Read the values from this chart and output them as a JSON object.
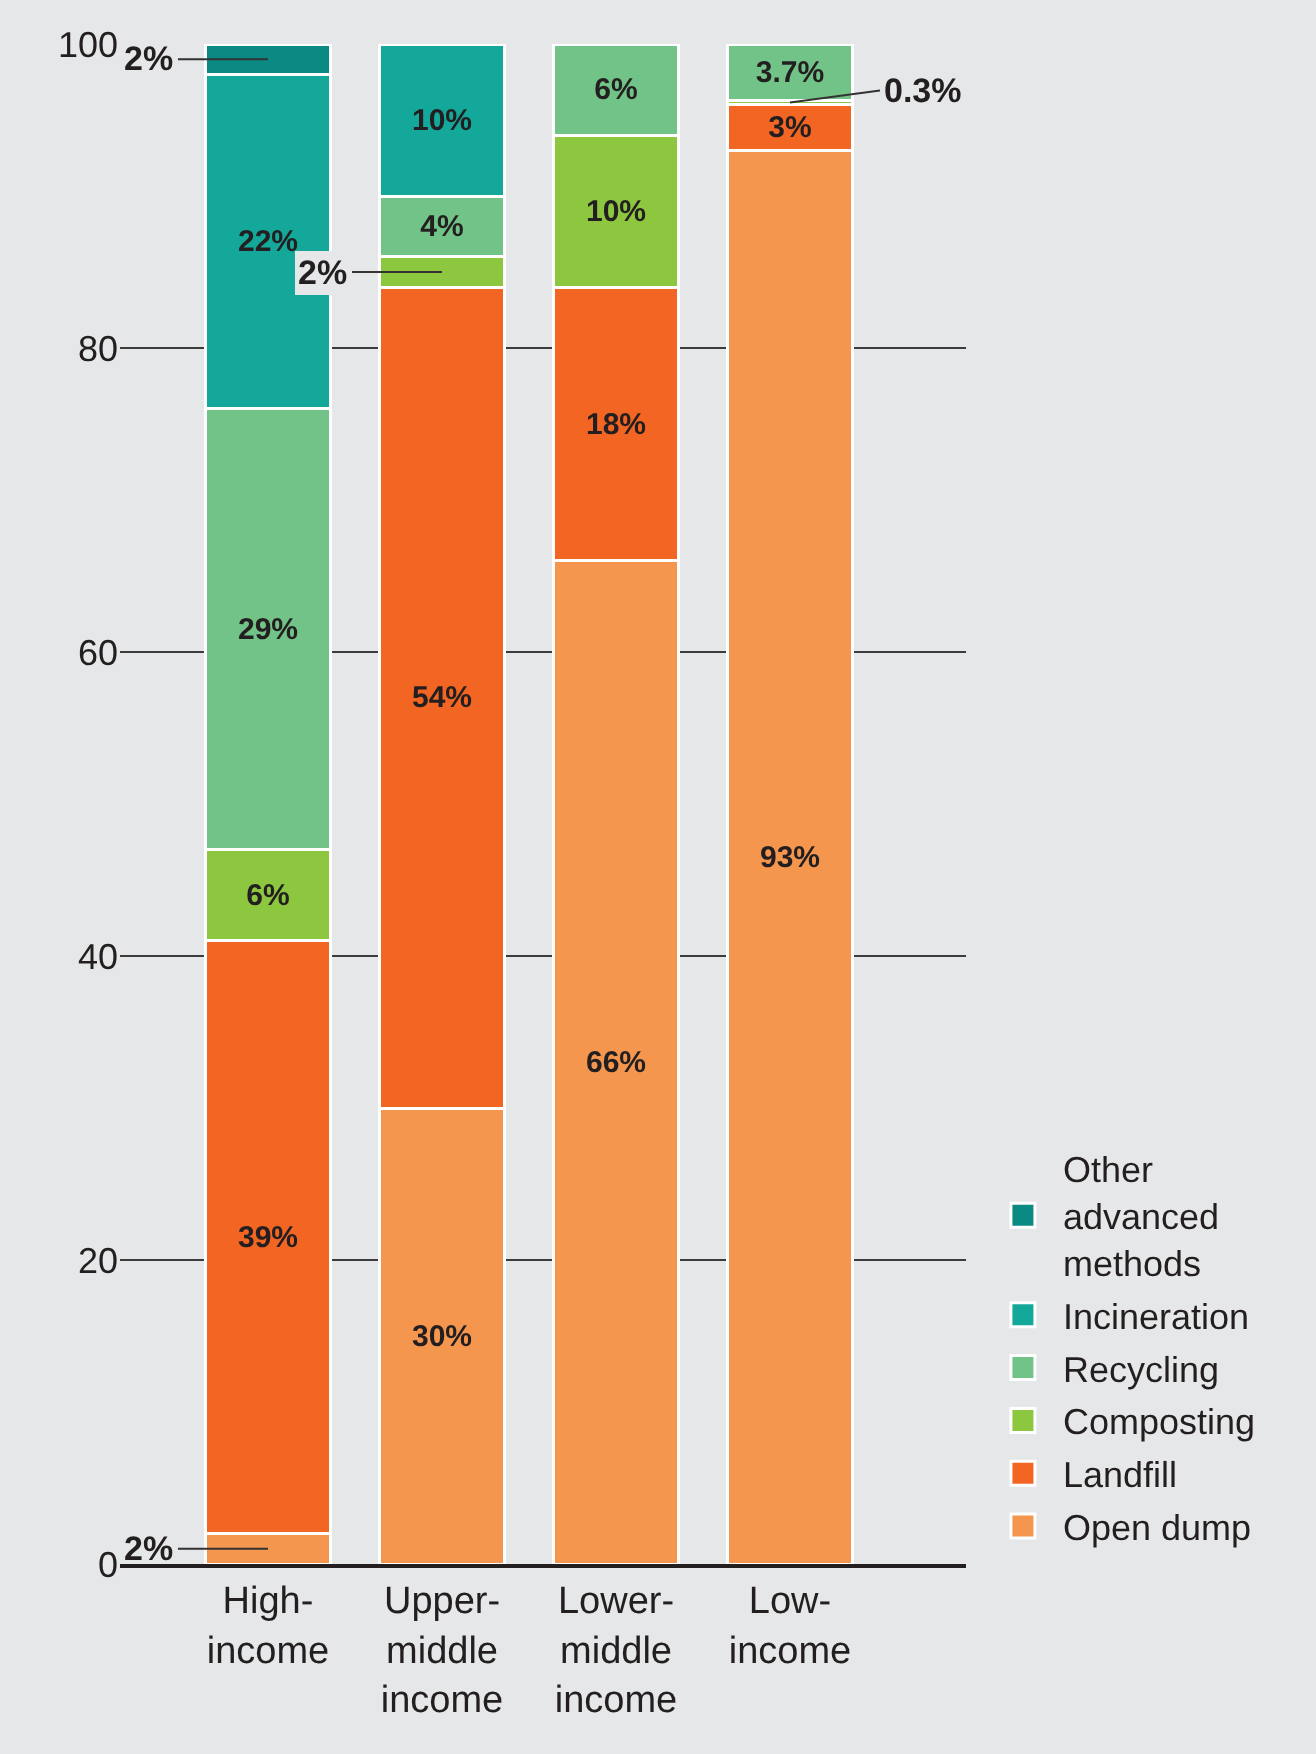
{
  "chart_data": {
    "type": "bar",
    "stacked": true,
    "categories": [
      "High-income",
      "Upper-middle income",
      "Lower-middle income",
      "Low-income"
    ],
    "series": [
      {
        "name": "Open dump",
        "color": "#f5964f",
        "values": [
          2,
          30,
          66,
          93
        ],
        "value_labels": [
          "2%",
          "30%",
          "66%",
          "93%"
        ]
      },
      {
        "name": "Landfill",
        "color": "#f26522",
        "values": [
          39,
          54,
          18,
          3
        ],
        "value_labels": [
          "39%",
          "54%",
          "18%",
          "3%"
        ]
      },
      {
        "name": "Composting",
        "color": "#8dc63f",
        "values": [
          6,
          2,
          10,
          0.3
        ],
        "value_labels": [
          "6%",
          "2%",
          "10%",
          "0.3%"
        ]
      },
      {
        "name": "Recycling",
        "color": "#72c387",
        "values": [
          29,
          4,
          6,
          3.7
        ],
        "value_labels": [
          "29%",
          "4%",
          "6%",
          "3.7%"
        ]
      },
      {
        "name": "Incineration",
        "color": "#14a89a",
        "values": [
          22,
          10,
          0,
          0
        ],
        "value_labels": [
          "22%",
          "10%",
          null,
          null
        ]
      },
      {
        "name": "Other advanced methods",
        "color": "#0b8a84",
        "values": [
          2,
          0,
          0,
          0
        ],
        "value_labels": [
          "2%",
          null,
          null,
          null
        ]
      }
    ],
    "ylim": [
      0,
      100
    ],
    "yticks": [
      0,
      20,
      40,
      60,
      80,
      100
    ],
    "grid": "y",
    "legend": "bottom right"
  }
}
